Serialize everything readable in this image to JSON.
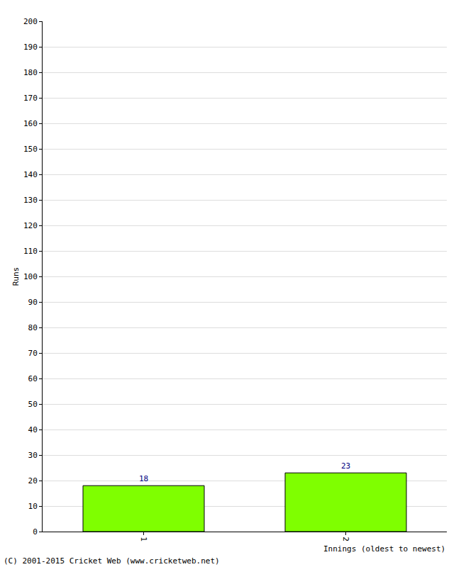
{
  "chart_data": {
    "type": "bar",
    "x_label": "Innings (oldest to newest)",
    "y_label": "Runs",
    "annotations": [
      "(C) 2001-2015 Cricket Web (www.cricketweb.net)"
    ],
    "categories": [
      "1",
      "2"
    ],
    "values": [
      18,
      23
    ],
    "color": "#7fff00",
    "data_labels": true,
    "ylim": [
      0,
      200
    ],
    "yticks": [
      0,
      10,
      20,
      30,
      40,
      50,
      60,
      70,
      80,
      90,
      100,
      110,
      120,
      130,
      140,
      150,
      160,
      170,
      180,
      190,
      200
    ],
    "grid": true
  }
}
